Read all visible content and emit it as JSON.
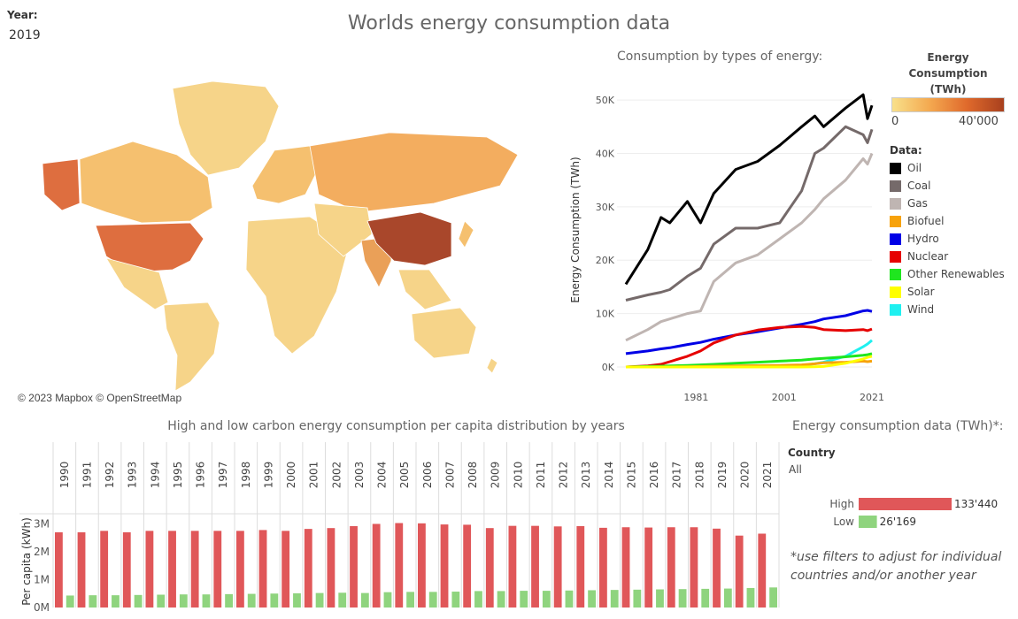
{
  "filters": {
    "year_label": "Year:",
    "year_value": "2019",
    "country_label": "Country",
    "country_value": "All"
  },
  "header": {
    "title": "Worlds energy consumption data"
  },
  "map": {
    "credit": "© 2023 Mapbox © OpenStreetMap"
  },
  "legend": {
    "title_lines": [
      "Energy",
      "Consumption",
      "(TWh)"
    ],
    "ramp_min": "0",
    "ramp_max": "40'000",
    "data_title": "Data:",
    "items": [
      {
        "name": "Oil",
        "color": "#000000"
      },
      {
        "name": "Coal",
        "color": "#756a6a"
      },
      {
        "name": "Gas",
        "color": "#bfb5b2"
      },
      {
        "name": "Biofuel",
        "color": "#f7a20a"
      },
      {
        "name": "Hydro",
        "color": "#0000e6"
      },
      {
        "name": "Nuclear",
        "color": "#e60000"
      },
      {
        "name": "Other Renewables",
        "color": "#1fe61f"
      },
      {
        "name": "Solar",
        "color": "#ffff00"
      },
      {
        "name": "Wind",
        "color": "#1ff0f0"
      }
    ]
  },
  "chart_data": [
    {
      "type": "line",
      "title": "Consumption by types of energy:",
      "ylabel": "Energy Consumption (TWh)",
      "xlabel": "",
      "ylim": [
        0,
        53000
      ],
      "xlim": [
        1965,
        2021
      ],
      "x_ticks": [
        "1981",
        "2001",
        "2021"
      ],
      "y_ticks": [
        "0K",
        "10K",
        "20K",
        "30K",
        "40K",
        "50K"
      ],
      "x": [
        1965,
        1970,
        1973,
        1975,
        1979,
        1982,
        1985,
        1990,
        1995,
        2000,
        2005,
        2008,
        2010,
        2015,
        2019,
        2020,
        2021
      ],
      "series": [
        {
          "name": "Oil",
          "color": "#000000",
          "values": [
            15500,
            22000,
            28000,
            27000,
            31000,
            27000,
            32500,
            37000,
            38500,
            41500,
            45000,
            47000,
            45000,
            48500,
            51000,
            46500,
            49000
          ]
        },
        {
          "name": "Coal",
          "color": "#756a6a",
          "values": [
            12500,
            13500,
            14000,
            14500,
            17000,
            18500,
            23000,
            26000,
            26000,
            27000,
            33000,
            40000,
            41000,
            45000,
            43500,
            42000,
            44500
          ]
        },
        {
          "name": "Gas",
          "color": "#bfb5b2",
          "values": [
            5000,
            7000,
            8500,
            9000,
            10000,
            10500,
            16000,
            19500,
            21000,
            24000,
            27000,
            29500,
            31500,
            35000,
            39000,
            38000,
            40000
          ]
        },
        {
          "name": "Hydro",
          "color": "#0000e6",
          "values": [
            2500,
            3000,
            3400,
            3600,
            4200,
            4600,
            5200,
            6000,
            6600,
            7300,
            8000,
            8500,
            9000,
            9600,
            10500,
            10600,
            10400
          ]
        },
        {
          "name": "Nuclear",
          "color": "#e60000",
          "values": [
            0,
            200,
            500,
            1000,
            2000,
            3000,
            4500,
            6000,
            6900,
            7400,
            7600,
            7400,
            7000,
            6800,
            7000,
            6800,
            7100
          ]
        },
        {
          "name": "Wind",
          "color": "#1ff0f0",
          "values": [
            0,
            0,
            0,
            0,
            0,
            0,
            0,
            0,
            0,
            100,
            300,
            600,
            900,
            2000,
            3800,
            4300,
            5000
          ]
        },
        {
          "name": "Other Renewables",
          "color": "#1fe61f",
          "values": [
            0,
            100,
            150,
            200,
            300,
            400,
            500,
            700,
            900,
            1100,
            1300,
            1500,
            1600,
            1900,
            2200,
            2300,
            2500
          ]
        },
        {
          "name": "Biofuel",
          "color": "#f7a20a",
          "values": [
            0,
            0,
            0,
            0,
            50,
            100,
            150,
            200,
            250,
            300,
            400,
            600,
            800,
            900,
            1100,
            1000,
            1100
          ]
        },
        {
          "name": "Solar",
          "color": "#ffff00",
          "values": [
            0,
            0,
            0,
            0,
            0,
            0,
            0,
            0,
            0,
            0,
            0,
            50,
            100,
            700,
            1500,
            1800,
            2000
          ]
        }
      ]
    },
    {
      "type": "bar",
      "title": "High and low carbon energy consumption per capita distribution by years",
      "ylabel": "Per capita (kWh)",
      "ylim": [
        0,
        3300000
      ],
      "y_ticks": [
        "0M",
        "1M",
        "2M",
        "3M"
      ],
      "categories": [
        "1990",
        "1991",
        "1992",
        "1993",
        "1994",
        "1995",
        "1996",
        "1997",
        "1998",
        "1999",
        "2000",
        "2001",
        "2002",
        "2003",
        "2004",
        "2005",
        "2006",
        "2007",
        "2008",
        "2009",
        "2010",
        "2011",
        "2012",
        "2013",
        "2014",
        "2015",
        "2016",
        "2017",
        "2018",
        "2019",
        "2020",
        "2021"
      ],
      "series": [
        {
          "name": "High",
          "color": "#e05759",
          "values": [
            2700000,
            2700000,
            2750000,
            2700000,
            2750000,
            2750000,
            2750000,
            2750000,
            2750000,
            2780000,
            2750000,
            2820000,
            2850000,
            2920000,
            3000000,
            3030000,
            3020000,
            2980000,
            2970000,
            2850000,
            2930000,
            2930000,
            2910000,
            2920000,
            2860000,
            2880000,
            2870000,
            2880000,
            2880000,
            2830000,
            2580000,
            2650000
          ]
        },
        {
          "name": "Low",
          "color": "#8fd47e",
          "values": [
            430000,
            440000,
            440000,
            450000,
            460000,
            470000,
            470000,
            480000,
            490000,
            500000,
            510000,
            520000,
            530000,
            520000,
            550000,
            560000,
            560000,
            570000,
            590000,
            590000,
            600000,
            600000,
            610000,
            620000,
            630000,
            640000,
            650000,
            660000,
            670000,
            680000,
            700000,
            720000
          ]
        }
      ]
    },
    {
      "type": "bar",
      "title": "Energy consumption data (TWh)*:",
      "categories": [
        "High",
        "Low"
      ],
      "values": [
        133440,
        26169
      ],
      "value_labels": [
        "133'440",
        "26'169"
      ],
      "colors": [
        "#e05759",
        "#8fd47e"
      ]
    }
  ],
  "map_data": {
    "land_color": "#f6d489",
    "highlight_colors": {
      "china": "#a9472b",
      "usa": "#de6e3f",
      "russia": "#f3ad5f",
      "india": "#eaa058",
      "canada": "#f5c06f"
    }
  },
  "notes": {
    "text": "*use filters to adjust for individual countries and/or another year"
  }
}
